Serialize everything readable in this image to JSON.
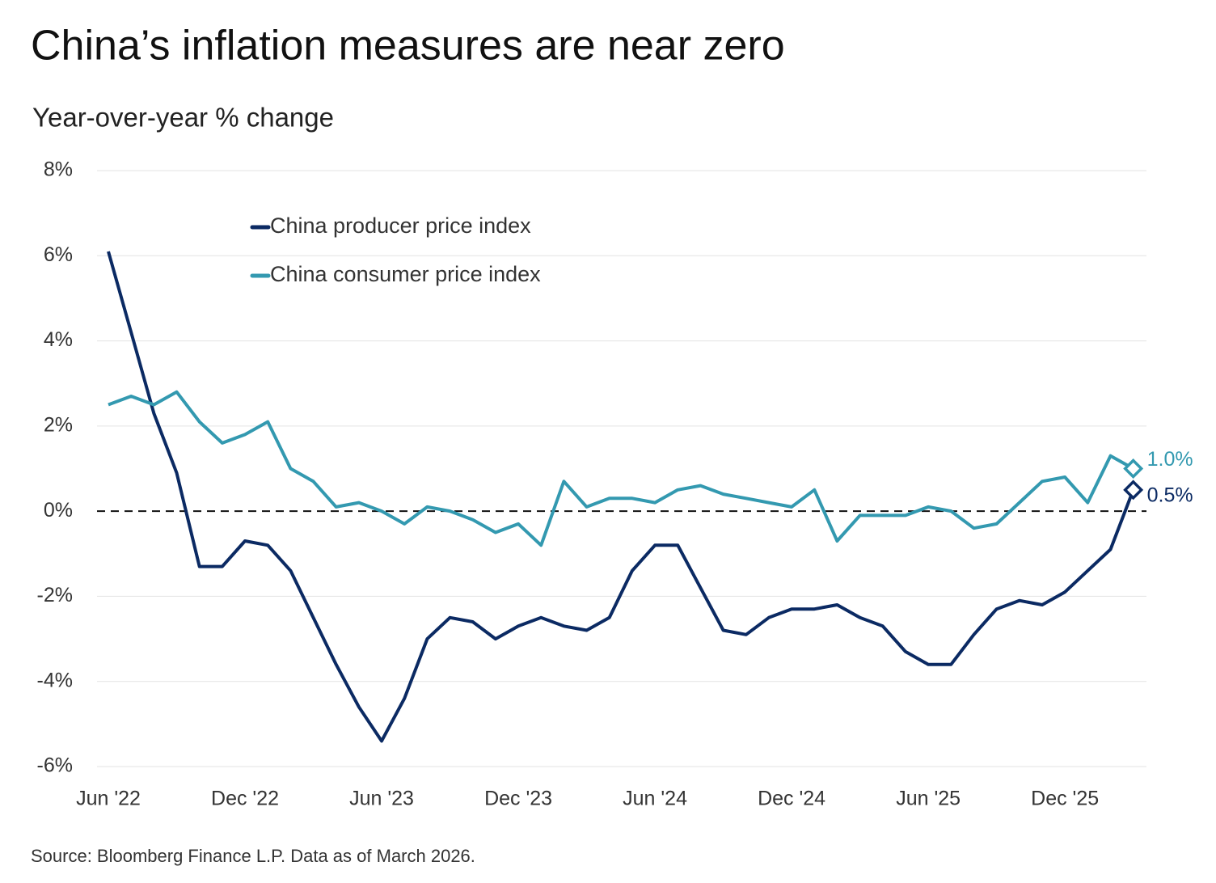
{
  "chart_data": {
    "type": "line",
    "title": "China’s inflation measures are near zero",
    "subtitle": "Year-over-year % change",
    "source": "Source: Bloomberg Finance L.P. Data as of March 2026.",
    "categories": [
      "Jun '22",
      null,
      null,
      null,
      null,
      null,
      "Dec '22",
      null,
      null,
      null,
      null,
      null,
      "Jun '23",
      null,
      null,
      null,
      null,
      null,
      "Dec '23",
      null,
      null,
      null,
      null,
      null,
      "Jun '24",
      null,
      null,
      null,
      null,
      null,
      "Dec '24",
      null,
      null,
      null,
      null,
      null,
      "Jun '25",
      null,
      null,
      null,
      null,
      null,
      "Dec '25",
      null,
      null,
      null
    ],
    "series": [
      {
        "name": "China producer price index",
        "color": "#0b2a63",
        "values": [
          6.1,
          4.2,
          2.3,
          0.9,
          -1.3,
          -1.3,
          -0.7,
          -0.8,
          -1.4,
          -2.5,
          -3.6,
          -4.6,
          -5.4,
          -4.4,
          -3.0,
          -2.5,
          -2.6,
          -3.0,
          -2.7,
          -2.5,
          -2.7,
          -2.8,
          -2.5,
          -1.4,
          -0.8,
          -0.8,
          -1.8,
          -2.8,
          -2.9,
          -2.5,
          -2.3,
          -2.3,
          -2.2,
          -2.5,
          -2.7,
          -3.3,
          -3.6,
          -3.6,
          -2.9,
          -2.3,
          -2.1,
          -2.2,
          -1.9,
          -1.4,
          -0.9,
          0.5
        ],
        "value_labels": [
          null,
          null,
          null,
          null,
          null,
          null,
          null,
          null,
          null,
          null,
          null,
          null,
          null,
          null,
          null,
          null,
          null,
          null,
          null,
          null,
          null,
          null,
          null,
          null,
          null,
          null,
          null,
          null,
          null,
          null,
          null,
          null,
          null,
          null,
          null,
          null,
          null,
          null,
          null,
          null,
          null,
          null,
          null,
          null,
          null,
          "0.5%"
        ]
      },
      {
        "name": "China consumer price index",
        "color": "#3399b0",
        "values": [
          2.5,
          2.7,
          2.5,
          2.8,
          2.1,
          1.6,
          1.8,
          2.1,
          1.0,
          0.7,
          0.1,
          0.2,
          0.0,
          -0.3,
          0.1,
          0.0,
          -0.2,
          -0.5,
          -0.3,
          -0.8,
          0.7,
          0.1,
          0.3,
          0.3,
          0.2,
          0.5,
          0.6,
          0.4,
          0.3,
          0.2,
          0.1,
          0.5,
          -0.7,
          -0.1,
          -0.1,
          -0.1,
          0.1,
          0.0,
          -0.4,
          -0.3,
          0.2,
          0.7,
          0.8,
          0.2,
          1.3,
          1.0
        ],
        "value_labels": [
          null,
          null,
          null,
          null,
          null,
          null,
          null,
          null,
          null,
          null,
          null,
          null,
          null,
          null,
          null,
          null,
          null,
          null,
          null,
          null,
          null,
          null,
          null,
          null,
          null,
          null,
          null,
          null,
          null,
          null,
          null,
          null,
          null,
          null,
          null,
          null,
          null,
          null,
          null,
          null,
          null,
          null,
          null,
          null,
          null,
          "1.0%"
        ]
      }
    ],
    "ylim": [
      -6,
      8
    ],
    "yticks": [
      {
        "value": -6,
        "label": "-6%"
      },
      {
        "value": -4,
        "label": "-4%"
      },
      {
        "value": -2,
        "label": "-2%"
      },
      {
        "value": 0,
        "label": "0%"
      },
      {
        "value": 2,
        "label": "2%"
      },
      {
        "value": 4,
        "label": "4%"
      },
      {
        "value": 6,
        "label": "6%"
      },
      {
        "value": 8,
        "label": "8%"
      }
    ],
    "grid": true
  }
}
